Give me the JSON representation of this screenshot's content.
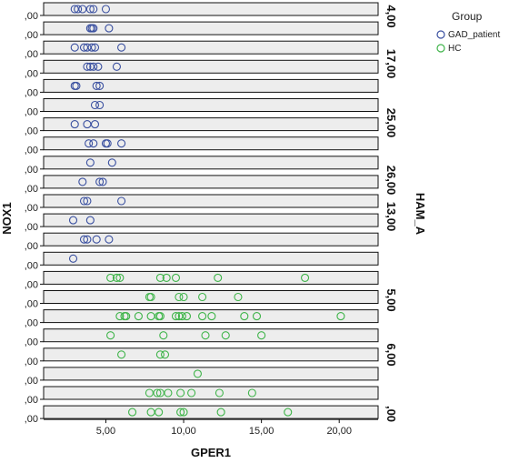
{
  "chart_data": {
    "type": "scatter",
    "xlabel": "GPER1",
    "ylabel": "NOX1",
    "facet_label": "HAM_A",
    "panel_y_tick": ",00",
    "x_ticks": [
      "5,00",
      "10,00",
      "15,00",
      "20,00"
    ],
    "xlim": [
      1.0,
      22.5
    ],
    "facet_values": [
      "4,00",
      "17,00",
      "25,00",
      "26,00",
      "13,00",
      "5,00",
      "6,00",
      ",00"
    ],
    "legend": {
      "title": "Group",
      "position": "top-right",
      "entries": [
        {
          "name": "GAD_patient",
          "color": "#3a50a0"
        },
        {
          "name": "HC",
          "color": "#3fb44a"
        }
      ]
    },
    "panel_color": "#ededed",
    "panels": [
      {
        "group": "GAD_patient",
        "x": [
          3.0,
          3.2,
          3.5,
          4.0,
          4.2,
          5.0
        ]
      },
      {
        "group": "GAD_patient",
        "x": [
          4.0,
          4.1,
          4.2,
          5.2
        ]
      },
      {
        "group": "GAD_patient",
        "x": [
          3.0,
          3.6,
          3.8,
          4.1,
          4.3,
          6.0
        ]
      },
      {
        "group": "GAD_patient",
        "x": [
          3.8,
          4.0,
          4.2,
          4.5,
          5.7
        ]
      },
      {
        "group": "GAD_patient",
        "x": [
          3.0,
          3.1,
          4.4,
          4.6
        ]
      },
      {
        "group": "GAD_patient",
        "x": [
          4.3,
          4.6
        ]
      },
      {
        "group": "GAD_patient",
        "x": [
          3.0,
          3.8,
          4.3
        ]
      },
      {
        "group": "GAD_patient",
        "x": [
          3.9,
          4.2,
          5.0,
          5.1,
          6.0
        ]
      },
      {
        "group": "GAD_patient",
        "x": [
          4.0,
          5.4
        ]
      },
      {
        "group": "GAD_patient",
        "x": [
          3.5,
          4.6,
          4.8
        ]
      },
      {
        "group": "GAD_patient",
        "x": [
          3.6,
          3.8,
          6.0
        ]
      },
      {
        "group": "GAD_patient",
        "x": [
          2.9,
          4.0
        ]
      },
      {
        "group": "GAD_patient",
        "x": [
          3.6,
          3.8,
          4.4,
          5.2
        ]
      },
      {
        "group": "GAD_patient",
        "x": [
          2.9
        ]
      },
      {
        "group": "HC",
        "x": [
          5.3,
          5.7,
          5.9,
          8.5,
          8.9,
          9.5,
          12.2,
          17.8
        ]
      },
      {
        "group": "HC",
        "x": [
          7.8,
          7.9,
          9.7,
          10.0,
          11.2,
          13.5
        ]
      },
      {
        "group": "HC",
        "x": [
          5.9,
          6.2,
          6.3,
          7.1,
          7.9,
          8.4,
          8.5,
          9.5,
          9.7,
          9.9,
          10.2,
          11.2,
          11.8,
          13.9,
          14.7,
          20.1
        ]
      },
      {
        "group": "HC",
        "x": [
          5.3,
          8.7,
          11.4,
          12.7,
          15.0
        ]
      },
      {
        "group": "HC",
        "x": [
          6.0,
          8.5,
          8.8
        ]
      },
      {
        "group": "HC",
        "x": [
          10.9
        ]
      },
      {
        "group": "HC",
        "x": [
          7.8,
          8.3,
          8.5,
          9.0,
          9.8,
          10.5,
          12.3,
          14.4
        ]
      },
      {
        "group": "HC",
        "x": [
          6.7,
          7.9,
          8.4,
          9.8,
          10.0,
          12.4,
          16.7
        ]
      }
    ]
  }
}
